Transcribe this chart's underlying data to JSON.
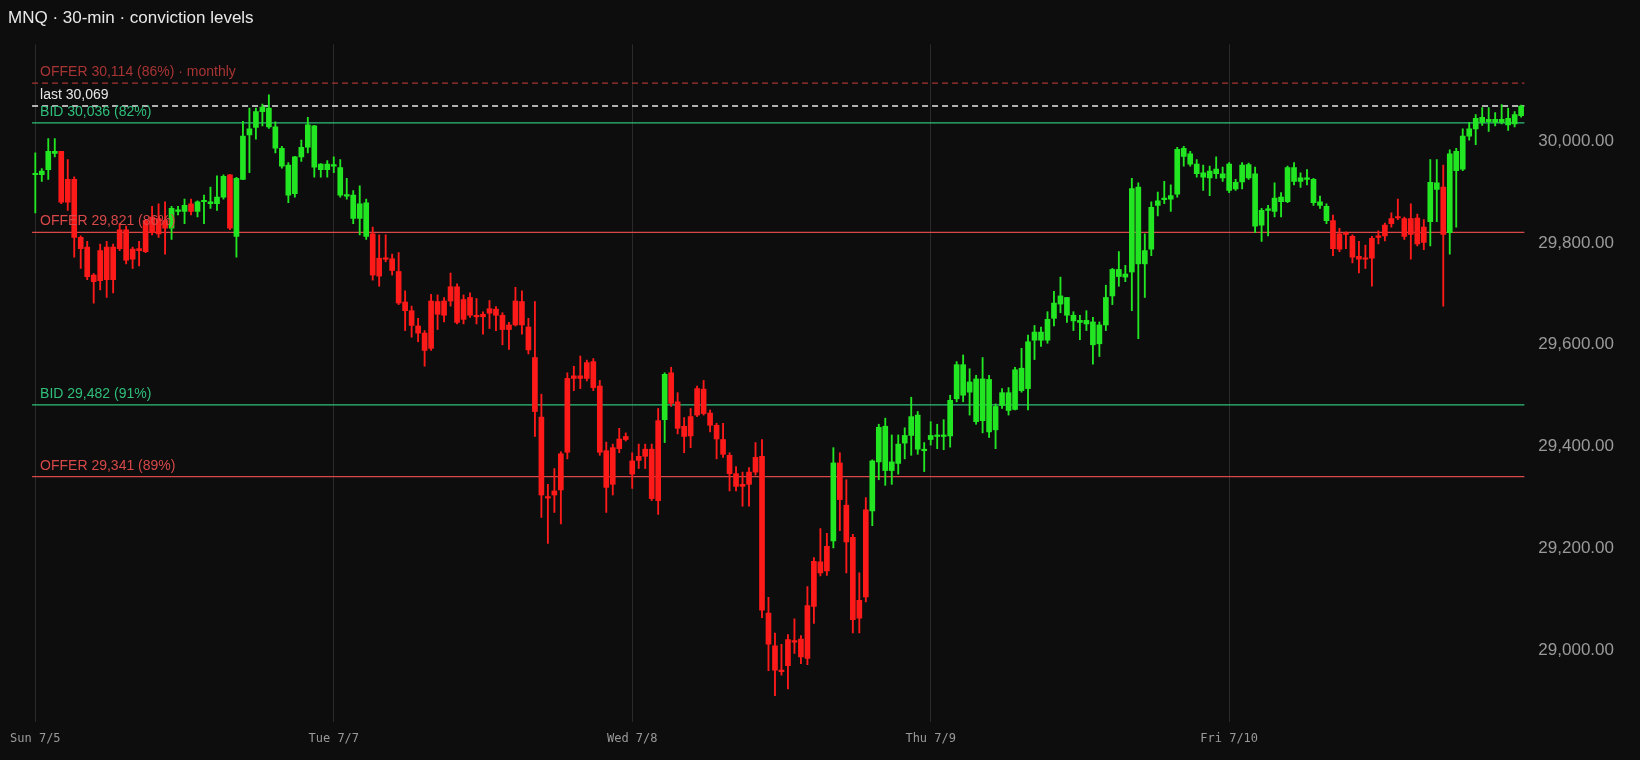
{
  "chart_data": {
    "type": "candlestick",
    "title": "MNQ · 30-min · conviction levels",
    "categories": [
      "Sun 7/5",
      null,
      null,
      null,
      null,
      null,
      null,
      null,
      null,
      null,
      null,
      null,
      null,
      null,
      null,
      null,
      null,
      null,
      null,
      null,
      null,
      null,
      null,
      null,
      null,
      null,
      null,
      null,
      null,
      null,
      null,
      null,
      null,
      null,
      null,
      null,
      null,
      null,
      null,
      null,
      null,
      null,
      null,
      null,
      null,
      null,
      "Tue 7/7",
      null,
      null,
      null,
      null,
      null,
      null,
      null,
      null,
      null,
      null,
      null,
      null,
      null,
      null,
      null,
      null,
      null,
      null,
      null,
      null,
      null,
      null,
      null,
      null,
      null,
      null,
      null,
      null,
      null,
      null,
      null,
      null,
      null,
      null,
      null,
      null,
      null,
      null,
      null,
      null,
      null,
      null,
      null,
      null,
      null,
      "Wed 7/8",
      null,
      null,
      null,
      null,
      null,
      null,
      null,
      null,
      null,
      null,
      null,
      null,
      null,
      null,
      null,
      null,
      null,
      null,
      null,
      null,
      null,
      null,
      null,
      null,
      null,
      null,
      null,
      null,
      null,
      null,
      null,
      null,
      null,
      null,
      null,
      null,
      null,
      null,
      null,
      null,
      null,
      null,
      null,
      null,
      null,
      "Thu 7/9",
      null,
      null,
      null,
      null,
      null,
      null,
      null,
      null,
      null,
      null,
      null,
      null,
      null,
      null,
      null,
      null,
      null,
      null,
      null,
      null,
      null,
      null,
      null,
      null,
      null,
      null,
      null,
      null,
      null,
      null,
      null,
      null,
      null,
      null,
      null,
      null,
      null,
      null,
      null,
      null,
      null,
      null,
      null,
      null,
      null,
      "Fri 7/10",
      null,
      null,
      null,
      null,
      null,
      null,
      null,
      null,
      null,
      null,
      null,
      null,
      null,
      null,
      null,
      null,
      null,
      null,
      null,
      null,
      null,
      null,
      null,
      null,
      null,
      null,
      null,
      null,
      null,
      null,
      null,
      null,
      null,
      null,
      null,
      null,
      null,
      null,
      null,
      null,
      null,
      null,
      null,
      null,
      null
    ],
    "ohlc": [
      [
        29934,
        29977,
        29859,
        29936
      ],
      [
        29934,
        29946,
        29921,
        29941
      ],
      [
        29944,
        30005,
        29925,
        29980
      ],
      [
        29976,
        30005,
        29969,
        29980
      ],
      [
        29980,
        29980,
        29877,
        29880
      ],
      [
        29925,
        29964,
        29864,
        29880
      ],
      [
        29925,
        29930,
        29772,
        29811
      ],
      [
        29811,
        29814,
        29750,
        29789
      ],
      [
        29792,
        29803,
        29728,
        29734
      ],
      [
        29737,
        29740,
        29682,
        29724
      ],
      [
        29785,
        29798,
        29708,
        29726
      ],
      [
        29792,
        29803,
        29693,
        29728
      ],
      [
        29792,
        29798,
        29702,
        29728
      ],
      [
        29826,
        29838,
        29785,
        29789
      ],
      [
        29826,
        29833,
        29759,
        29766
      ],
      [
        29788,
        29792,
        29750,
        29768
      ],
      [
        29789,
        29803,
        29755,
        29785
      ],
      [
        29844,
        29846,
        29781,
        29783
      ],
      [
        29851,
        29872,
        29816,
        29820
      ],
      [
        29848,
        29877,
        29811,
        29818
      ],
      [
        29844,
        29881,
        29778,
        29829
      ],
      [
        29829,
        29872,
        29807,
        29868
      ],
      [
        29862,
        29872,
        29855,
        29865
      ],
      [
        29862,
        29886,
        29838,
        29874
      ],
      [
        29877,
        29886,
        29855,
        29862
      ],
      [
        29862,
        29883,
        29851,
        29881
      ],
      [
        29881,
        29894,
        29838,
        29884
      ],
      [
        29877,
        29910,
        29868,
        29881
      ],
      [
        29877,
        29932,
        29864,
        29890
      ],
      [
        29890,
        29934,
        29886,
        29931
      ],
      [
        29934,
        29935,
        29826,
        29829
      ],
      [
        29813,
        29929,
        29772,
        29927
      ],
      [
        29925,
        30039,
        29925,
        30010
      ],
      [
        30012,
        30065,
        29938,
        30024
      ],
      [
        30027,
        30065,
        30004,
        30058
      ],
      [
        30058,
        30073,
        30030,
        30067
      ],
      [
        30028,
        30091,
        30025,
        30065
      ],
      [
        29986,
        30038,
        29977,
        30028
      ],
      [
        29951,
        29990,
        29947,
        29986
      ],
      [
        29894,
        29958,
        29879,
        29953
      ],
      [
        29897,
        29970,
        29890,
        29969
      ],
      [
        29969,
        30002,
        29960,
        29988
      ],
      [
        29988,
        30047,
        29977,
        30032
      ],
      [
        29949,
        30031,
        29929,
        30030
      ],
      [
        29944,
        29956,
        29929,
        29955
      ],
      [
        29944,
        29962,
        29929,
        29955
      ],
      [
        29951,
        29969,
        29938,
        29953
      ],
      [
        29894,
        29964,
        29890,
        29948
      ],
      [
        29892,
        29927,
        29886,
        29894
      ],
      [
        29848,
        29903,
        29838,
        29894
      ],
      [
        29848,
        29912,
        29816,
        29877
      ],
      [
        29813,
        29886,
        29807,
        29879
      ],
      [
        29818,
        29831,
        29727,
        29737
      ],
      [
        29770,
        29816,
        29715,
        29735
      ],
      [
        29770,
        29816,
        29763,
        29768
      ],
      [
        29769,
        29778,
        29737,
        29746
      ],
      [
        29744,
        29781,
        29679,
        29682
      ],
      [
        29684,
        29706,
        29628,
        29667
      ],
      [
        29667,
        29676,
        29615,
        29638
      ],
      [
        29637,
        29652,
        29606,
        29623
      ],
      [
        29623,
        29628,
        29558,
        29589
      ],
      [
        29686,
        29699,
        29589,
        29593
      ],
      [
        29685,
        29698,
        29630,
        29660
      ],
      [
        29686,
        29693,
        29645,
        29658
      ],
      [
        29714,
        29741,
        29676,
        29686
      ],
      [
        29714,
        29720,
        29641,
        29644
      ],
      [
        29689,
        29698,
        29641,
        29650
      ],
      [
        29693,
        29702,
        29654,
        29658
      ],
      [
        29658,
        29691,
        29641,
        29655
      ],
      [
        29660,
        29665,
        29621,
        29655
      ],
      [
        29671,
        29687,
        29632,
        29662
      ],
      [
        29670,
        29675,
        29628,
        29658
      ],
      [
        29658,
        29663,
        29600,
        29630
      ],
      [
        29639,
        29644,
        29591,
        29630
      ],
      [
        29686,
        29713,
        29637,
        29639
      ],
      [
        29685,
        29706,
        29621,
        29639
      ],
      [
        29635,
        29652,
        29582,
        29590
      ],
      [
        29575,
        29685,
        29420,
        29469
      ],
      [
        29458,
        29503,
        29261,
        29305
      ],
      [
        29302,
        29326,
        29210,
        29299
      ],
      [
        29313,
        29357,
        29271,
        29305
      ],
      [
        29386,
        29390,
        29248,
        29315
      ],
      [
        29534,
        29545,
        29376,
        29389
      ],
      [
        29539,
        29558,
        29510,
        29534
      ],
      [
        29539,
        29578,
        29514,
        29534
      ],
      [
        29565,
        29570,
        29529,
        29534
      ],
      [
        29567,
        29573,
        29510,
        29516
      ],
      [
        29519,
        29530,
        29383,
        29389
      ],
      [
        29392,
        29409,
        29271,
        29320
      ],
      [
        29398,
        29405,
        29305,
        29326
      ],
      [
        29415,
        29436,
        29388,
        29396
      ],
      [
        29420,
        29427,
        29411,
        29414
      ],
      [
        29372,
        29388,
        29318,
        29346
      ],
      [
        29381,
        29405,
        29357,
        29373
      ],
      [
        29395,
        29405,
        29357,
        29381
      ],
      [
        29395,
        29405,
        29294,
        29298
      ],
      [
        29451,
        29475,
        29267,
        29294
      ],
      [
        29453,
        29545,
        29408,
        29542
      ],
      [
        29545,
        29556,
        29479,
        29485
      ],
      [
        29488,
        29506,
        29425,
        29436
      ],
      [
        29440,
        29457,
        29388,
        29420
      ],
      [
        29459,
        29475,
        29398,
        29421
      ],
      [
        29514,
        29519,
        29459,
        29462
      ],
      [
        29513,
        29530,
        29462,
        29465
      ],
      [
        29466,
        29472,
        29429,
        29442
      ],
      [
        29442,
        29446,
        29376,
        29415
      ],
      [
        29414,
        29446,
        29379,
        29385
      ],
      [
        29383,
        29388,
        29313,
        29347
      ],
      [
        29347,
        29361,
        29313,
        29322
      ],
      [
        29326,
        29350,
        29283,
        29322
      ],
      [
        29350,
        29359,
        29283,
        29326
      ],
      [
        29379,
        29408,
        29344,
        29350
      ],
      [
        29381,
        29414,
        29064,
        29079
      ],
      [
        29073,
        29104,
        28960,
        29012
      ],
      [
        29009,
        29034,
        28911,
        28961
      ],
      [
        28961,
        29012,
        28951,
        28958
      ],
      [
        29021,
        29031,
        28924,
        28970
      ],
      [
        29019,
        29062,
        28994,
        29016
      ],
      [
        29022,
        29029,
        28974,
        28987
      ],
      [
        29088,
        29125,
        28972,
        28984
      ],
      [
        29175,
        29182,
        29053,
        29086
      ],
      [
        29174,
        29239,
        29146,
        29152
      ],
      [
        29204,
        29230,
        29147,
        29156
      ],
      [
        29215,
        29398,
        29201,
        29368
      ],
      [
        29368,
        29388,
        29235,
        29296
      ],
      [
        29285,
        29335,
        29152,
        29213
      ],
      [
        29222,
        29228,
        29034,
        29060
      ],
      [
        29098,
        29152,
        29034,
        29063
      ],
      [
        29276,
        29300,
        29095,
        29105
      ],
      [
        29274,
        29374,
        29245,
        29372
      ],
      [
        29370,
        29444,
        29335,
        29438
      ],
      [
        29353,
        29456,
        29324,
        29440
      ],
      [
        29353,
        29423,
        29326,
        29370
      ],
      [
        29367,
        29423,
        29346,
        29405
      ],
      [
        29407,
        29437,
        29376,
        29422
      ],
      [
        29422,
        29497,
        29383,
        29459
      ],
      [
        29395,
        29469,
        29385,
        29462
      ],
      [
        29392,
        29408,
        29351,
        29392
      ],
      [
        29414,
        29449,
        29403,
        29422
      ],
      [
        29420,
        29444,
        29396,
        29422
      ],
      [
        29420,
        29453,
        29394,
        29422
      ],
      [
        29421,
        29501,
        29399,
        29491
      ],
      [
        29494,
        29567,
        29488,
        29561
      ],
      [
        29501,
        29580,
        29488,
        29561
      ],
      [
        29507,
        29553,
        29462,
        29527
      ],
      [
        29449,
        29540,
        29444,
        29533
      ],
      [
        29451,
        29575,
        29427,
        29533
      ],
      [
        29429,
        29540,
        29418,
        29532
      ],
      [
        29433,
        29484,
        29396,
        29479
      ],
      [
        29481,
        29514,
        29475,
        29506
      ],
      [
        29471,
        29516,
        29462,
        29506
      ],
      [
        29473,
        29556,
        29472,
        29551
      ],
      [
        29510,
        29593,
        29507,
        29554
      ],
      [
        29514,
        29619,
        29472,
        29606
      ],
      [
        29609,
        29638,
        29571,
        29625
      ],
      [
        29609,
        29635,
        29597,
        29625
      ],
      [
        29609,
        29665,
        29603,
        29650
      ],
      [
        29652,
        29705,
        29637,
        29682
      ],
      [
        29680,
        29733,
        29663,
        29696
      ],
      [
        29658,
        29693,
        29644,
        29693
      ],
      [
        29647,
        29665,
        29628,
        29658
      ],
      [
        29644,
        29658,
        29610,
        29648
      ],
      [
        29641,
        29667,
        29628,
        29648
      ],
      [
        29600,
        29654,
        29562,
        29645
      ],
      [
        29602,
        29645,
        29577,
        29639
      ],
      [
        29639,
        29717,
        29628,
        29693
      ],
      [
        29696,
        29750,
        29679,
        29748
      ],
      [
        29734,
        29783,
        29715,
        29748
      ],
      [
        29733,
        29756,
        29724,
        29739
      ],
      [
        29743,
        29927,
        29667,
        29907
      ],
      [
        29759,
        29918,
        29612,
        29910
      ],
      [
        29759,
        29818,
        29693,
        29785
      ],
      [
        29788,
        29881,
        29775,
        29870
      ],
      [
        29874,
        29900,
        29853,
        29883
      ],
      [
        29885,
        29921,
        29877,
        29887
      ],
      [
        29886,
        29914,
        29862,
        29893
      ],
      [
        29896,
        29988,
        29890,
        29984
      ],
      [
        29970,
        29990,
        29951,
        29986
      ],
      [
        29955,
        29980,
        29951,
        29975
      ],
      [
        29936,
        29964,
        29929,
        29955
      ],
      [
        29929,
        29953,
        29903,
        29938
      ],
      [
        29928,
        29951,
        29893,
        29941
      ],
      [
        29936,
        29969,
        29927,
        29945
      ],
      [
        29928,
        29949,
        29921,
        29936
      ],
      [
        29903,
        29958,
        29899,
        29955
      ],
      [
        29906,
        29925,
        29903,
        29919
      ],
      [
        29920,
        29958,
        29906,
        29953
      ],
      [
        29928,
        29957,
        29925,
        29954
      ],
      [
        29833,
        29949,
        29820,
        29936
      ],
      [
        29835,
        29868,
        29803,
        29864
      ],
      [
        29864,
        29874,
        29814,
        29864
      ],
      [
        29862,
        29918,
        29851,
        29888
      ],
      [
        29881,
        29899,
        29851,
        29890
      ],
      [
        29881,
        29951,
        29879,
        29948
      ],
      [
        29921,
        29958,
        29914,
        29948
      ],
      [
        29921,
        29938,
        29909,
        29928
      ],
      [
        29925,
        29944,
        29914,
        29928
      ],
      [
        29879,
        29927,
        29874,
        29925
      ],
      [
        29874,
        29892,
        29868,
        29881
      ],
      [
        29844,
        29877,
        29838,
        29872
      ],
      [
        29844,
        29855,
        29775,
        29789
      ],
      [
        29818,
        29829,
        29783,
        29788
      ],
      [
        29818,
        29822,
        29789,
        29817
      ],
      [
        29813,
        29816,
        29761,
        29772
      ],
      [
        29774,
        29803,
        29741,
        29768
      ],
      [
        29769,
        29796,
        29750,
        29768
      ],
      [
        29809,
        29813,
        29715,
        29770
      ],
      [
        29812,
        29824,
        29798,
        29811
      ],
      [
        29835,
        29839,
        29804,
        29814
      ],
      [
        29848,
        29859,
        29831,
        29838
      ],
      [
        29850,
        29886,
        29846,
        29849
      ],
      [
        29848,
        29851,
        29807,
        29813
      ],
      [
        29848,
        29877,
        29768,
        29817
      ],
      [
        29849,
        29857,
        29794,
        29798
      ],
      [
        29831,
        29846,
        29787,
        29801
      ],
      [
        29842,
        29964,
        29794,
        29919
      ],
      [
        29905,
        29964,
        29842,
        29918
      ],
      [
        29910,
        29953,
        29676,
        29817
      ],
      [
        29820,
        29983,
        29778,
        29975
      ],
      [
        29942,
        29986,
        29831,
        29980
      ],
      [
        29945,
        30024,
        29942,
        30010
      ],
      [
        30010,
        30037,
        30002,
        30024
      ],
      [
        30024,
        30052,
        29993,
        30045
      ],
      [
        30037,
        30066,
        30031,
        30047
      ],
      [
        30038,
        30066,
        30019,
        30043
      ],
      [
        30037,
        30056,
        30030,
        30043
      ],
      [
        30037,
        30072,
        30034,
        30043
      ],
      [
        30032,
        30065,
        30021,
        30045
      ],
      [
        30034,
        30058,
        30028,
        30052
      ],
      [
        30050,
        30071,
        30047,
        30069
      ]
    ],
    "colors": [
      "#22e622",
      "#22e622",
      "#22e622",
      "#22e622",
      "#ff1a1a",
      "#ff1a1a",
      "#ff1a1a",
      "#ff1a1a",
      "#ff1a1a",
      "#ff1a1a",
      "#ff1a1a",
      "#ff1a1a",
      "#ff1a1a",
      "#ff1a1a",
      "#ff1a1a",
      "#ff1a1a",
      "#ff1a1a",
      "#ff1a1a",
      "#ff1a1a",
      "#ff1a1a",
      "#ff1a1a",
      "#22e622",
      "#22e622",
      "#22e622",
      "#ff1a1a",
      "#22e622",
      "#22e622",
      "#22e622",
      "#22e622",
      "#22e622",
      "#ff1a1a",
      "#22e622",
      "#22e622",
      "#22e622",
      "#22e622",
      "#22e622",
      "#22e622",
      "#22e622",
      "#22e622",
      "#22e622",
      "#22e622",
      "#22e622",
      "#22e622",
      "#22e622",
      "#22e622",
      "#22e622",
      "#22e622",
      "#22e622",
      "#22e622",
      "#22e622",
      "#22e622",
      "#22e622",
      "#ff1a1a",
      "#ff1a1a",
      "#ff1a1a",
      "#ff1a1a",
      "#ff1a1a",
      "#ff1a1a",
      "#ff1a1a",
      "#ff1a1a",
      "#ff1a1a",
      "#ff1a1a",
      "#ff1a1a",
      "#ff1a1a",
      "#ff1a1a",
      "#ff1a1a",
      "#ff1a1a",
      "#ff1a1a",
      "#ff1a1a",
      "#ff1a1a",
      "#ff1a1a",
      "#ff1a1a",
      "#ff1a1a",
      "#ff1a1a",
      "#ff1a1a",
      "#ff1a1a",
      "#ff1a1a",
      "#ff1a1a",
      "#ff1a1a",
      "#ff1a1a",
      "#ff1a1a",
      "#ff1a1a",
      "#ff1a1a",
      "#ff1a1a",
      "#ff1a1a",
      "#ff1a1a",
      "#ff1a1a",
      "#ff1a1a",
      "#ff1a1a",
      "#ff1a1a",
      "#ff1a1a",
      "#ff1a1a",
      "#ff1a1a",
      "#ff1a1a",
      "#ff1a1a",
      "#ff1a1a",
      "#ff1a1a",
      "#22e622",
      "#ff1a1a",
      "#ff1a1a",
      "#ff1a1a",
      "#ff1a1a",
      "#ff1a1a",
      "#ff1a1a",
      "#ff1a1a",
      "#ff1a1a",
      "#ff1a1a",
      "#ff1a1a",
      "#ff1a1a",
      "#ff1a1a",
      "#ff1a1a",
      "#ff1a1a",
      "#ff1a1a",
      "#ff1a1a",
      "#ff1a1a",
      "#ff1a1a",
      "#ff1a1a",
      "#ff1a1a",
      "#ff1a1a",
      "#ff1a1a",
      "#ff1a1a",
      "#ff1a1a",
      "#ff1a1a",
      "#22e622",
      "#ff1a1a",
      "#ff1a1a",
      "#ff1a1a",
      "#ff1a1a",
      "#ff1a1a",
      "#22e622",
      "#22e622",
      "#22e622",
      "#22e622",
      "#22e622",
      "#22e622",
      "#22e622",
      "#22e622",
      "#22e622",
      "#22e622",
      "#22e622",
      "#22e622",
      "#22e622",
      "#22e622",
      "#22e622",
      "#22e622",
      "#22e622",
      "#22e622",
      "#22e622",
      "#22e622",
      "#22e622",
      "#22e622",
      "#22e622",
      "#22e622",
      "#22e622",
      "#22e622",
      "#22e622",
      "#22e622",
      "#22e622",
      "#22e622",
      "#22e622",
      "#22e622",
      "#22e622",
      "#22e622",
      "#22e622",
      "#22e622",
      "#22e622",
      "#22e622",
      "#22e622",
      "#22e622",
      "#22e622",
      "#22e622",
      "#22e622",
      "#22e622",
      "#22e622",
      "#22e622",
      "#22e622",
      "#22e622",
      "#22e622",
      "#22e622",
      "#22e622",
      "#22e622",
      "#22e622",
      "#22e622",
      "#22e622",
      "#22e622",
      "#22e622",
      "#22e622",
      "#22e622",
      "#22e622",
      "#22e622",
      "#22e622",
      "#22e622",
      "#22e622",
      "#22e622",
      "#22e622",
      "#22e622",
      "#22e622",
      "#22e622",
      "#22e622",
      "#22e622",
      "#ff1a1a",
      "#ff1a1a",
      "#ff1a1a",
      "#ff1a1a",
      "#ff1a1a",
      "#ff1a1a",
      "#ff1a1a",
      "#ff1a1a",
      "#ff1a1a",
      "#ff1a1a",
      "#ff1a1a",
      "#ff1a1a",
      "#ff1a1a",
      "#ff1a1a",
      "#ff1a1a",
      "#22e622",
      "#22e622",
      "#ff1a1a",
      "#22e622",
      "#22e622",
      "#22e622",
      "#22e622",
      "#22e622",
      "#22e622",
      "#22e622",
      "#22e622",
      "#22e622",
      "#22e622",
      "#22e622",
      "#22e622"
    ],
    "ylim": [
      28860,
      30190
    ],
    "yticks": [
      {
        "value": 29000,
        "label": "29,000.00"
      },
      {
        "value": 29200,
        "label": "29,200.00"
      },
      {
        "value": 29400,
        "label": "29,400.00"
      },
      {
        "value": 29600,
        "label": "29,600.00"
      },
      {
        "value": 29800,
        "label": "29,800.00"
      },
      {
        "value": 30000,
        "label": "30,000.00"
      }
    ],
    "grid": "x",
    "ref_lines": [
      {
        "axis": "y",
        "value": 30114,
        "label": "OFFER 30,114 (86%) · monthly",
        "color": "#a83434",
        "line_style": "dashed"
      },
      {
        "axis": "y",
        "value": 30069,
        "label": "last 30,069",
        "color": "#e8e8e8",
        "line_style": "dashed"
      },
      {
        "axis": "y",
        "value": 30036,
        "label": "BID 30,036 (82%)",
        "color": "#2fbf7a",
        "line_style": "solid"
      },
      {
        "axis": "y",
        "value": 29821,
        "label": "OFFER 29,821 (86%)",
        "color": "#d84848",
        "line_style": "solid"
      },
      {
        "axis": "y",
        "value": 29482,
        "label": "BID 29,482 (91%)",
        "color": "#2fbf7a",
        "line_style": "solid"
      },
      {
        "axis": "y",
        "value": 29341,
        "label": "OFFER 29,341 (89%)",
        "color": "#d84848",
        "line_style": "solid"
      }
    ]
  }
}
